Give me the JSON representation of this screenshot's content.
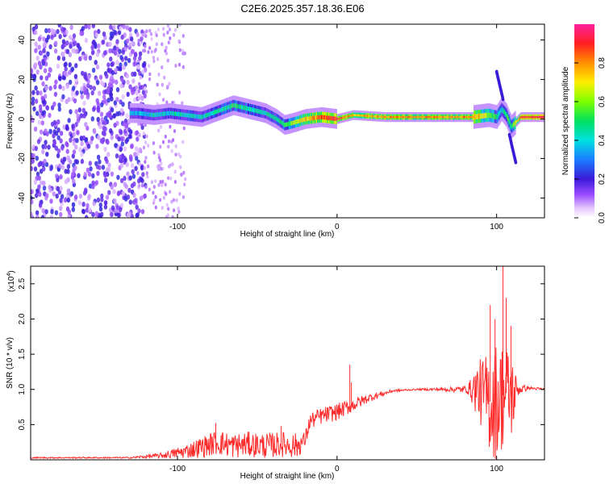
{
  "title": "C2E6.2025.357.18.36.E06",
  "chart_data": [
    {
      "type": "heatmap",
      "xlabel": "Height of straight line (km)",
      "ylabel": "Frequency (Hz)",
      "xlim": [
        -192,
        130
      ],
      "ylim": [
        -50,
        48
      ],
      "xticks": [
        -100,
        0,
        100
      ],
      "yticks": [
        -40,
        -20,
        0,
        20,
        40
      ],
      "colorbar": {
        "label": "Normalized spectral amplitude",
        "range": [
          0,
          1
        ],
        "ticks": [
          "0.0",
          "0.2",
          "0.4",
          "0.6",
          "0.8"
        ],
        "tick_values": [
          0,
          0.2,
          0.4,
          0.6,
          0.8
        ]
      },
      "ridge": {
        "x": [
          -125,
          -115,
          -105,
          -95,
          -85,
          -75,
          -65,
          -55,
          -45,
          -38,
          -33,
          -28,
          -20,
          -10,
          0,
          10,
          30,
          50,
          70,
          85,
          95,
          100,
          103,
          106,
          109,
          115,
          130
        ],
        "freq": [
          3,
          2,
          3,
          2,
          1,
          4,
          7,
          5,
          3,
          0,
          -3,
          -2,
          0,
          1,
          0,
          2,
          1,
          1,
          1,
          1,
          2,
          1,
          5,
          2,
          -4,
          1,
          1
        ],
        "amplitude": [
          0.35,
          0.4,
          0.4,
          0.42,
          0.4,
          0.45,
          0.5,
          0.45,
          0.42,
          0.45,
          0.5,
          0.6,
          0.75,
          0.85,
          0.9,
          0.75,
          0.8,
          0.8,
          0.8,
          0.8,
          0.6,
          0.5,
          0.4,
          0.5,
          0.5,
          0.9,
          0.95
        ]
      }
    },
    {
      "type": "line",
      "xlabel": "Height of straight line (km)",
      "ylabel": "SNR (10 * v/v)",
      "y_multiplier": "(x10",
      "y_multiplier_exp": "4",
      "y_multiplier_close": ")",
      "xlim": [
        -192,
        130
      ],
      "ylim": [
        0,
        2.75
      ],
      "xticks": [
        -100,
        0,
        100
      ],
      "yticks": [
        0.5,
        1.0,
        1.5,
        2.0,
        2.5
      ],
      "ytick_labels": [
        "0.5",
        "1.0",
        "1.5",
        "2.0",
        "2.5"
      ],
      "color": "#ff2a2a",
      "envelope": {
        "x": [
          -192,
          -130,
          -110,
          -95,
          -85,
          -75,
          -65,
          -55,
          -45,
          -35,
          -25,
          -20,
          -17,
          -10,
          0,
          10,
          20,
          35,
          50,
          70,
          82,
          88,
          93,
          97,
          100,
          103,
          106,
          110,
          113,
          120,
          130
        ],
        "mean": [
          0.03,
          0.03,
          0.06,
          0.12,
          0.18,
          0.25,
          0.2,
          0.22,
          0.2,
          0.22,
          0.2,
          0.28,
          0.55,
          0.62,
          0.68,
          0.78,
          0.88,
          0.98,
          1.0,
          1.0,
          1.0,
          1.0,
          0.9,
          0.8,
          0.85,
          0.9,
          0.95,
          0.9,
          1.0,
          1.02,
          1.0
        ],
        "amp": [
          0.01,
          0.01,
          0.04,
          0.1,
          0.15,
          0.18,
          0.18,
          0.18,
          0.18,
          0.18,
          0.18,
          0.12,
          0.12,
          0.12,
          0.12,
          0.1,
          0.06,
          0.02,
          0.01,
          0.03,
          0.06,
          0.4,
          0.6,
          0.8,
          0.85,
          0.8,
          0.7,
          0.6,
          0.1,
          0.02,
          0.02
        ]
      },
      "spikes": [
        {
          "x": -76,
          "y": 0.52
        },
        {
          "x": -35,
          "y": 0.48
        },
        {
          "x": 8,
          "y": 1.35
        },
        {
          "x": 9,
          "y": 1.1
        },
        {
          "x": 96,
          "y": 2.2
        },
        {
          "x": 99,
          "y": 2.0
        },
        {
          "x": 104,
          "y": 2.75
        },
        {
          "x": 106,
          "y": 2.3
        },
        {
          "x": 109,
          "y": 1.9
        }
      ]
    }
  ]
}
